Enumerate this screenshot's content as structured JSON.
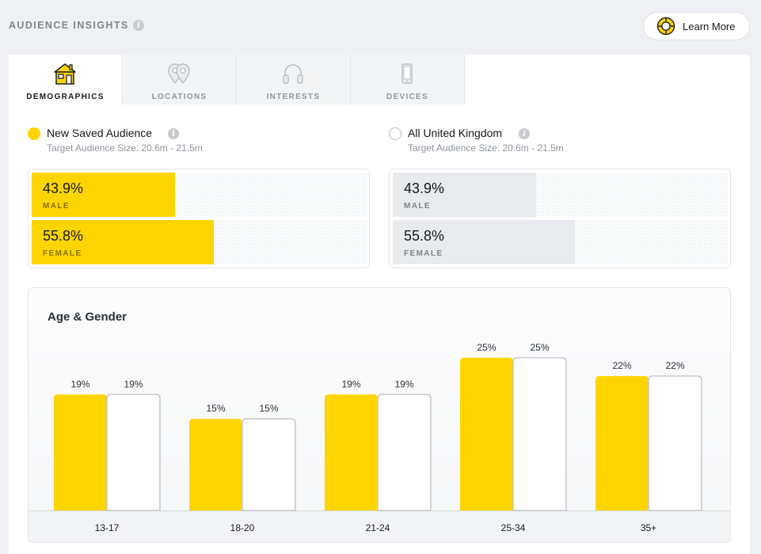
{
  "header": {
    "title": "AUDIENCE INSIGHTS",
    "info_icon": "info-icon",
    "learn_more": {
      "label": "Learn More",
      "icon": "lifebuoy-icon"
    }
  },
  "tabs": [
    {
      "label": "DEMOGRAPHICS",
      "icon": "house-icon",
      "active": true
    },
    {
      "label": "LOCATIONS",
      "icon": "map-pin-icon",
      "active": false
    },
    {
      "label": "INTERESTS",
      "icon": "headphones-icon",
      "active": false
    },
    {
      "label": "DEVICES",
      "icon": "phone-icon",
      "active": false
    }
  ],
  "audiences": [
    {
      "name": "New Saved Audience",
      "size": "Target Audience Size: 20.6m - 21.5m",
      "selected": true,
      "color": "#ffd500",
      "gender": [
        {
          "pct": "43.9%",
          "label": "MALE",
          "value": 43.9
        },
        {
          "pct": "55.8%",
          "label": "FEMALE",
          "value": 55.8
        }
      ]
    },
    {
      "name": "All United Kingdom",
      "size": "Target Audience Size: 20.6m - 21.5m",
      "selected": false,
      "color": "#e8eaed",
      "gender": [
        {
          "pct": "43.9%",
          "label": "MALE",
          "value": 43.9
        },
        {
          "pct": "55.8%",
          "label": "FEMALE",
          "value": 55.8
        }
      ]
    }
  ],
  "age_gender": {
    "title": "Age & Gender"
  },
  "chart_data": {
    "type": "bar",
    "title": "Age & Gender",
    "categories": [
      "13-17",
      "18-20",
      "21-24",
      "25-34",
      "35+"
    ],
    "series": [
      {
        "name": "New Saved Audience",
        "values": [
          19,
          15,
          19,
          25,
          22
        ],
        "labels": [
          "19%",
          "15%",
          "19%",
          "25%",
          "22%"
        ],
        "color": "#ffd500"
      },
      {
        "name": "All United Kingdom",
        "values": [
          19,
          15,
          19,
          25,
          22
        ],
        "labels": [
          "19%",
          "15%",
          "19%",
          "25%",
          "22%"
        ],
        "color": "#ffffff"
      }
    ],
    "ylim": [
      0,
      25
    ],
    "grid": false,
    "xlabel": "",
    "ylabel": ""
  }
}
